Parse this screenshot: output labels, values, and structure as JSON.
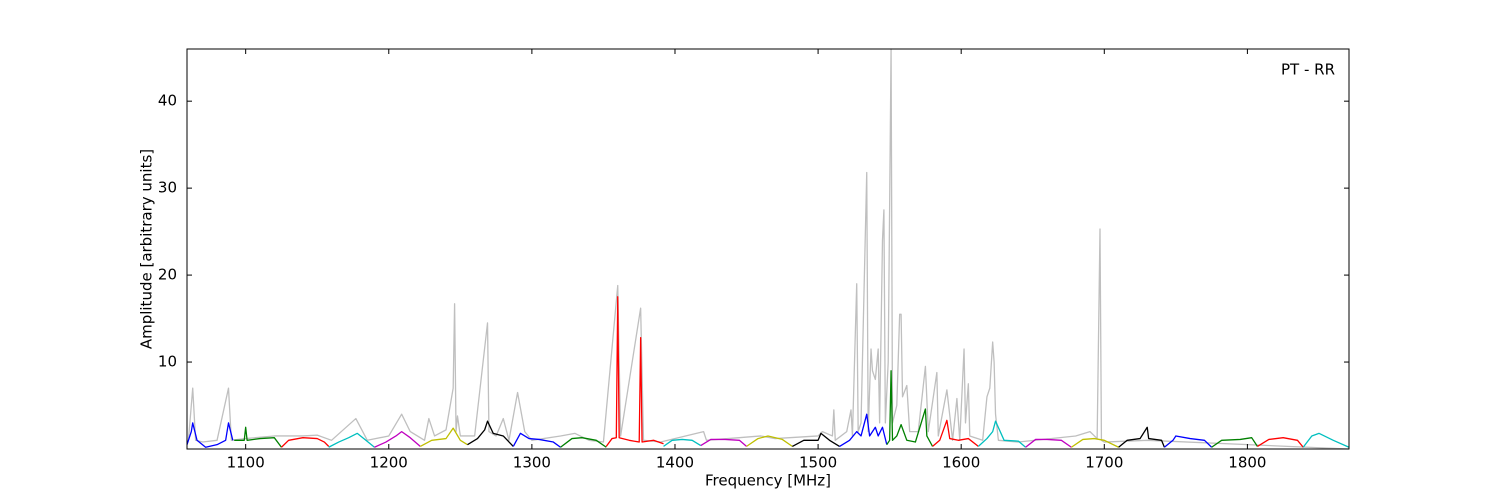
{
  "chart_data": {
    "type": "line",
    "annotation": "PT - RR",
    "x_label": "Frequency [MHz]",
    "y_label": "Amplitude [arbitrary units]",
    "xlim": [
      1059,
      1871
    ],
    "ylim": [
      0,
      46
    ],
    "xticks": [
      1100,
      1200,
      1300,
      1400,
      1500,
      1600,
      1700,
      1800
    ],
    "yticks": [
      10,
      20,
      30,
      40
    ],
    "series": [
      {
        "color": "#bfbfbf",
        "x": [
          1060,
          1063,
          1065,
          1070,
          1080,
          1088,
          1090,
          1100,
          1120,
          1140,
          1150,
          1160,
          1177,
          1185,
          1200,
          1209,
          1215,
          1225,
          1228,
          1232,
          1240,
          1245,
          1246,
          1247,
          1248,
          1250,
          1260,
          1269,
          1270,
          1275,
          1280,
          1284,
          1290,
          1295,
          1300,
          1320,
          1330,
          1340,
          1350,
          1360,
          1362,
          1376,
          1378,
          1390,
          1420,
          1422,
          1460,
          1470,
          1500,
          1503,
          1510,
          1511,
          1512,
          1520,
          1523,
          1524,
          1527,
          1528,
          1530,
          1534,
          1535,
          1537,
          1538,
          1540,
          1542,
          1543,
          1545,
          1546,
          1547,
          1549,
          1551,
          1552,
          1555,
          1557,
          1558,
          1559,
          1562,
          1564,
          1570,
          1575,
          1577,
          1583,
          1584,
          1590,
          1594,
          1597,
          1599,
          1602,
          1603,
          1605,
          1606,
          1615,
          1618,
          1620,
          1622,
          1623,
          1624,
          1626,
          1640,
          1680,
          1690,
          1695,
          1697,
          1698,
          1700,
          1730,
          1871
        ],
        "values": [
          1,
          7,
          1,
          0.8,
          1,
          7,
          1,
          1.2,
          1.5,
          1.5,
          1.6,
          1,
          3.5,
          1,
          1.5,
          4,
          2,
          1,
          3.5,
          1.5,
          2.2,
          7,
          16.7,
          2,
          3.8,
          1.5,
          1.5,
          14.5,
          2,
          1.5,
          3.5,
          1,
          6.5,
          2,
          1,
          1.5,
          1.8,
          1,
          0.8,
          18.8,
          1.5,
          16.2,
          1,
          0.8,
          2,
          1,
          1.5,
          1.2,
          1.5,
          2,
          1.5,
          4.5,
          1,
          2,
          4.5,
          1.5,
          19,
          2,
          3,
          31.8,
          2,
          11.5,
          9,
          8,
          11.5,
          3,
          24,
          27.5,
          3,
          10,
          46,
          3,
          5,
          15.5,
          15.5,
          6,
          7.3,
          2,
          2,
          9.5,
          2,
          8.8,
          1.5,
          6.8,
          1,
          5.8,
          1,
          11.5,
          3,
          7.5,
          1.5,
          1,
          6,
          7,
          12.3,
          10,
          4,
          1,
          0.8,
          1.5,
          2,
          1.2,
          25.3,
          1,
          0.8,
          1,
          0
        ]
      },
      {
        "color": "#0000ff",
        "x": [
          1059,
          1062,
          1063,
          1066,
          1072,
          1080,
          1086,
          1088,
          1091
        ],
        "values": [
          0.5,
          2,
          3,
          1,
          0.2,
          0.5,
          1,
          3,
          1
        ]
      },
      {
        "color": "#008000",
        "x": [
          1092,
          1099,
          1100,
          1101,
          1110,
          1120,
          1125
        ],
        "values": [
          1,
          1,
          2.5,
          1,
          1.2,
          1.3,
          0.2
        ]
      },
      {
        "color": "#ff0000",
        "x": [
          1125,
          1130,
          1140,
          1150,
          1155,
          1158
        ],
        "values": [
          0.2,
          1,
          1.3,
          1.2,
          0.8,
          0.3
        ]
      },
      {
        "color": "#00bfbf",
        "x": [
          1158,
          1165,
          1172,
          1178,
          1184,
          1190
        ],
        "values": [
          0.2,
          0.8,
          1.3,
          1.8,
          1,
          0.2
        ]
      },
      {
        "color": "#bf00bf",
        "x": [
          1190,
          1198,
          1205,
          1209,
          1215,
          1222
        ],
        "values": [
          0.2,
          0.8,
          1.5,
          2,
          1.3,
          0.3
        ]
      },
      {
        "color": "#bfbf00",
        "x": [
          1222,
          1230,
          1240,
          1245,
          1250,
          1255
        ],
        "values": [
          0.3,
          1,
          1.2,
          2.4,
          1,
          0.5
        ]
      },
      {
        "color": "#000000",
        "x": [
          1255,
          1262,
          1267,
          1269,
          1273,
          1280,
          1287
        ],
        "values": [
          0.5,
          1.2,
          2.2,
          3.2,
          1.8,
          1.5,
          0.3
        ]
      },
      {
        "color": "#0000ff",
        "x": [
          1287,
          1292,
          1298,
          1305,
          1315,
          1320
        ],
        "values": [
          0.3,
          1.8,
          1.2,
          1.1,
          0.8,
          0.2
        ]
      },
      {
        "color": "#008000",
        "x": [
          1320,
          1328,
          1335,
          1345,
          1352
        ],
        "values": [
          0.2,
          1.2,
          1.3,
          1,
          0.2
        ]
      },
      {
        "color": "#ff0000",
        "x": [
          1352,
          1356,
          1359,
          1360,
          1361,
          1368,
          1375,
          1376,
          1377,
          1385,
          1392
        ],
        "values": [
          0.3,
          1.2,
          1.3,
          17.5,
          1.3,
          1,
          0.8,
          12.8,
          0.8,
          1,
          0.6
        ]
      },
      {
        "color": "#00bfbf",
        "x": [
          1392,
          1398,
          1405,
          1412,
          1418
        ],
        "values": [
          0.3,
          1,
          1.1,
          1,
          0.4
        ]
      },
      {
        "color": "#bf00bf",
        "x": [
          1418,
          1425,
          1435,
          1445,
          1450
        ],
        "values": [
          0.4,
          1.1,
          1.1,
          1,
          0.3
        ]
      },
      {
        "color": "#bfbf00",
        "x": [
          1450,
          1458,
          1465,
          1475,
          1482
        ],
        "values": [
          0.3,
          1.2,
          1.5,
          1.1,
          0.3
        ]
      },
      {
        "color": "#000000",
        "x": [
          1482,
          1490,
          1500,
          1502,
          1508,
          1515
        ],
        "values": [
          0.3,
          1,
          1,
          1.8,
          1,
          0.3
        ]
      },
      {
        "color": "#0000ff",
        "x": [
          1515,
          1522,
          1527,
          1530,
          1534,
          1536,
          1540,
          1542,
          1545,
          1548
        ],
        "values": [
          0.3,
          1,
          2,
          1.5,
          4,
          1.5,
          2.5,
          1.5,
          2.5,
          0.5
        ]
      },
      {
        "color": "#008000",
        "x": [
          1548,
          1550,
          1551,
          1552,
          1555,
          1558,
          1562,
          1568,
          1575,
          1576,
          1580
        ],
        "values": [
          0.5,
          1,
          9,
          1,
          1.5,
          2.8,
          1,
          0.8,
          4.6,
          1.5,
          0.3
        ]
      },
      {
        "color": "#ff0000",
        "x": [
          1580,
          1585,
          1590,
          1592,
          1598,
          1605,
          1612
        ],
        "values": [
          0.3,
          1,
          3.3,
          1.2,
          1,
          1.2,
          0.3
        ]
      },
      {
        "color": "#00bfbf",
        "x": [
          1612,
          1618,
          1622,
          1624,
          1630,
          1640,
          1645
        ],
        "values": [
          0.3,
          1.2,
          2,
          3.2,
          1,
          0.9,
          0.2
        ]
      },
      {
        "color": "#bf00bf",
        "x": [
          1645,
          1652,
          1660,
          1670,
          1677
        ],
        "values": [
          0.2,
          1.1,
          1.1,
          1,
          0.2
        ]
      },
      {
        "color": "#bfbf00",
        "x": [
          1677,
          1685,
          1693,
          1700,
          1710
        ],
        "values": [
          0.2,
          1.1,
          1.2,
          1,
          0.2
        ]
      },
      {
        "color": "#000000",
        "x": [
          1710,
          1716,
          1725,
          1730,
          1731,
          1740,
          1742
        ],
        "values": [
          0.2,
          1,
          1.2,
          2.5,
          1.2,
          1,
          0.2
        ]
      },
      {
        "color": "#0000ff",
        "x": [
          1742,
          1748,
          1750,
          1760,
          1770,
          1775
        ],
        "values": [
          0.2,
          1,
          1.5,
          1.2,
          1,
          0.2
        ]
      },
      {
        "color": "#008000",
        "x": [
          1775,
          1782,
          1795,
          1803,
          1807
        ],
        "values": [
          0.2,
          1,
          1.1,
          1.3,
          0.3
        ]
      },
      {
        "color": "#ff0000",
        "x": [
          1807,
          1815,
          1825,
          1835,
          1839
        ],
        "values": [
          0.3,
          1.1,
          1.3,
          1,
          0.2
        ]
      },
      {
        "color": "#00bfbf",
        "x": [
          1839,
          1845,
          1850,
          1860,
          1871
        ],
        "values": [
          0.2,
          1.5,
          1.8,
          1,
          0.2
        ]
      }
    ]
  }
}
